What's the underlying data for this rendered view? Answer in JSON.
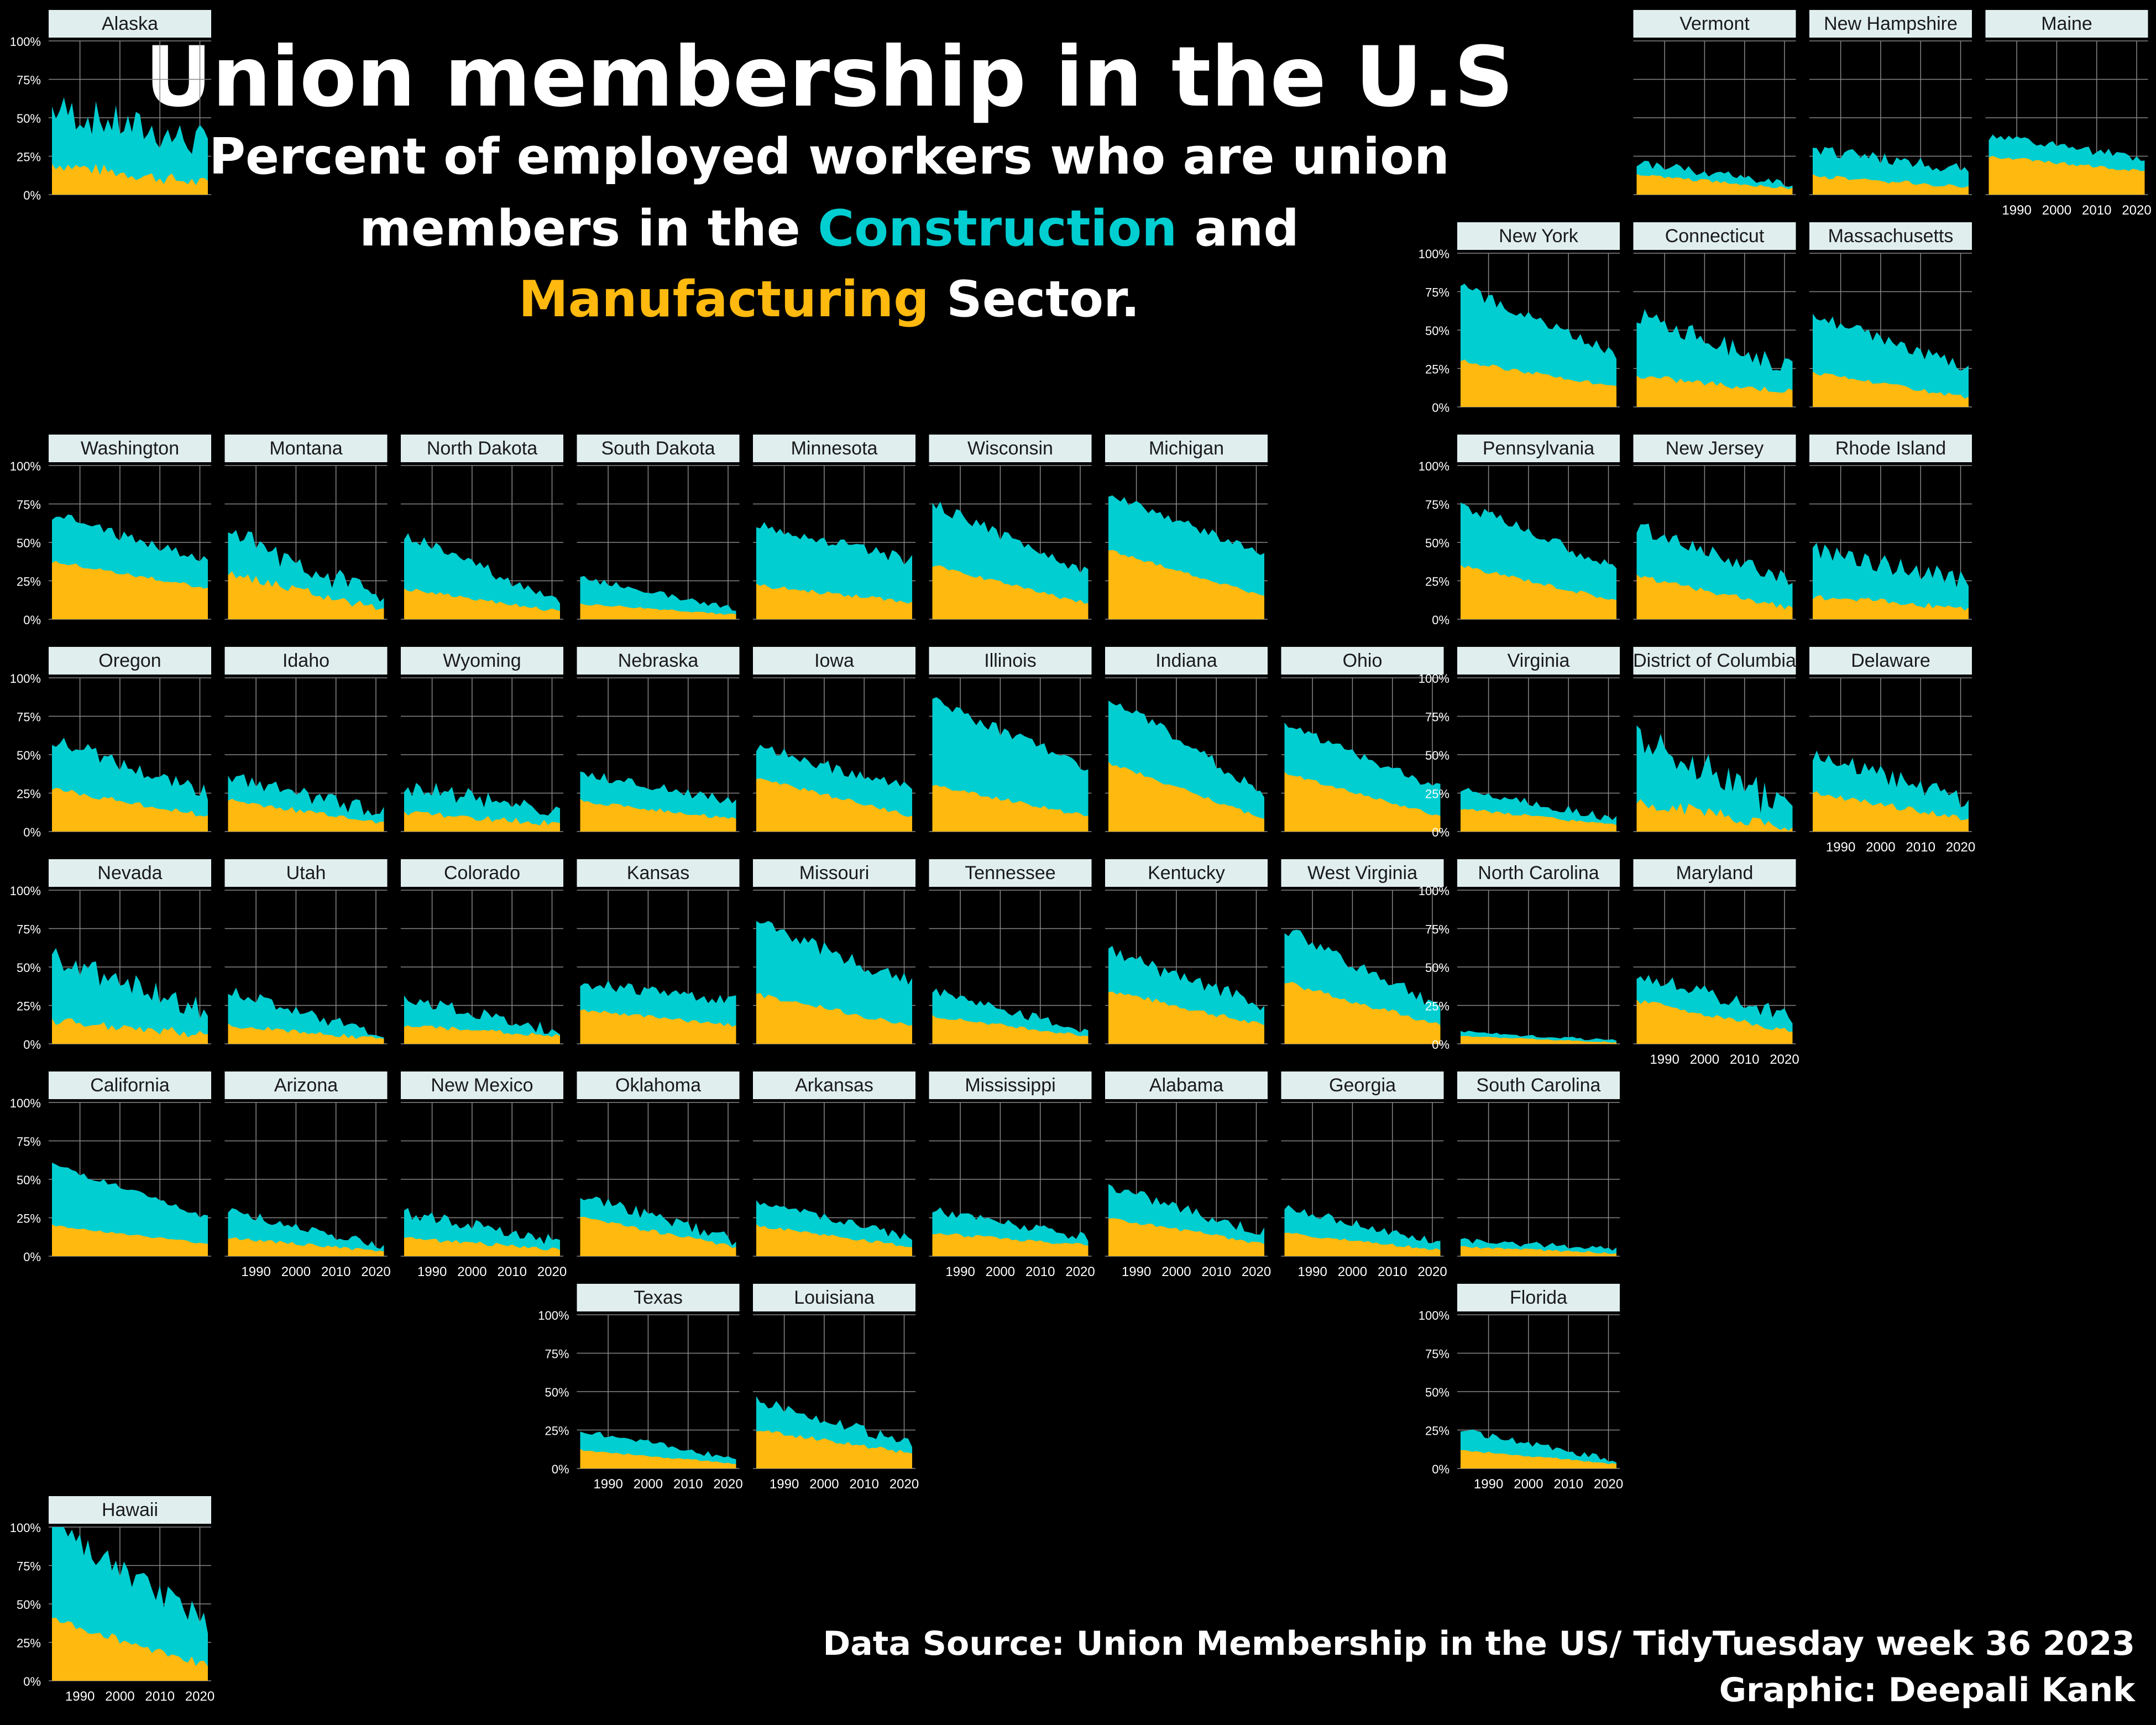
{
  "title": "Union membership in the U.S",
  "subtitle": {
    "line1": "Percent of employed workers who are union",
    "line2_pre": "members in the ",
    "line2_hl": "Construction",
    "line2_post": " and",
    "line3_hl": "Manufacturing",
    "line3_post": " Sector."
  },
  "credits": {
    "source": "Data Source:  Union Membership in the US/ TidyTuesday week 36 2023",
    "graphic": "Graphic: Deepali  Kank"
  },
  "colors": {
    "background": "#000000",
    "construction": "#00CED1",
    "manufacturing": "#FFB90F",
    "strip": "#E0EEEE",
    "grid": "#888888"
  },
  "chart_data": {
    "type": "area",
    "layout": "geofacet small multiples (US state grid)",
    "stacked": true,
    "series_names": [
      "Construction",
      "Manufacturing"
    ],
    "x_range": [
      1983,
      2022
    ],
    "y_range": [
      0,
      1
    ],
    "y_ticks": [
      0,
      0.25,
      0.5,
      0.75,
      1.0
    ],
    "y_tick_labels": [
      "0%",
      "25%",
      "50%",
      "75%",
      "100%"
    ],
    "x_ticks": [
      1990,
      2000,
      2010,
      2020
    ],
    "x_tick_labels": [
      "1990",
      "2000",
      "2010",
      "2020"
    ],
    "grid": true,
    "states": [
      {
        "name": "Alaska",
        "row": 0,
        "col": 0,
        "total_start": 0.56,
        "total_end": 0.33,
        "mfg_start": 0.2,
        "mfg_end": 0.07,
        "vol": 0.12,
        "yaxis": true,
        "xaxis": false
      },
      {
        "name": "Vermont",
        "row": 0,
        "col": 9,
        "total_start": 0.21,
        "total_end": 0.06,
        "mfg_start": 0.13,
        "mfg_end": 0.04,
        "vol": 0.03,
        "yaxis": false,
        "xaxis": false
      },
      {
        "name": "New Hampshire",
        "row": 0,
        "col": 10,
        "total_start": 0.3,
        "total_end": 0.16,
        "mfg_start": 0.12,
        "mfg_end": 0.05,
        "vol": 0.04,
        "yaxis": false,
        "xaxis": false
      },
      {
        "name": "Maine",
        "row": 0,
        "col": 11,
        "total_start": 0.38,
        "total_end": 0.24,
        "mfg_start": 0.25,
        "mfg_end": 0.15,
        "vol": 0.03,
        "yaxis": false,
        "xaxis": true
      },
      {
        "name": "New York",
        "row": 1,
        "col": 8,
        "total_start": 0.78,
        "total_end": 0.35,
        "mfg_start": 0.3,
        "mfg_end": 0.13,
        "vol": 0.04,
        "yaxis": true,
        "xaxis": false
      },
      {
        "name": "Connecticut",
        "row": 1,
        "col": 9,
        "total_start": 0.6,
        "total_end": 0.25,
        "mfg_start": 0.2,
        "mfg_end": 0.1,
        "vol": 0.06,
        "yaxis": false,
        "xaxis": false
      },
      {
        "name": "Massachusetts",
        "row": 1,
        "col": 10,
        "total_start": 0.6,
        "total_end": 0.25,
        "mfg_start": 0.22,
        "mfg_end": 0.06,
        "vol": 0.04,
        "yaxis": false,
        "xaxis": false
      },
      {
        "name": "Washington",
        "row": 2,
        "col": 0,
        "total_start": 0.68,
        "total_end": 0.38,
        "mfg_start": 0.38,
        "mfg_end": 0.2,
        "vol": 0.04,
        "yaxis": true,
        "xaxis": false
      },
      {
        "name": "Montana",
        "row": 2,
        "col": 1,
        "total_start": 0.55,
        "total_end": 0.15,
        "mfg_start": 0.3,
        "mfg_end": 0.06,
        "vol": 0.08,
        "yaxis": false,
        "xaxis": false
      },
      {
        "name": "North Dakota",
        "row": 2,
        "col": 2,
        "total_start": 0.55,
        "total_end": 0.12,
        "mfg_start": 0.2,
        "mfg_end": 0.05,
        "vol": 0.04,
        "yaxis": false,
        "xaxis": false
      },
      {
        "name": "South Dakota",
        "row": 2,
        "col": 3,
        "total_start": 0.27,
        "total_end": 0.07,
        "mfg_start": 0.1,
        "mfg_end": 0.03,
        "vol": 0.02,
        "yaxis": false,
        "xaxis": false
      },
      {
        "name": "Minnesota",
        "row": 2,
        "col": 4,
        "total_start": 0.63,
        "total_end": 0.38,
        "mfg_start": 0.22,
        "mfg_end": 0.11,
        "vol": 0.04,
        "yaxis": false,
        "xaxis": false
      },
      {
        "name": "Wisconsin",
        "row": 2,
        "col": 5,
        "total_start": 0.75,
        "total_end": 0.3,
        "mfg_start": 0.35,
        "mfg_end": 0.1,
        "vol": 0.04,
        "yaxis": false,
        "xaxis": false
      },
      {
        "name": "Michigan",
        "row": 2,
        "col": 6,
        "total_start": 0.82,
        "total_end": 0.42,
        "mfg_start": 0.45,
        "mfg_end": 0.15,
        "vol": 0.03,
        "yaxis": false,
        "xaxis": false
      },
      {
        "name": "Pennsylvania",
        "row": 2,
        "col": 8,
        "total_start": 0.75,
        "total_end": 0.33,
        "mfg_start": 0.35,
        "mfg_end": 0.12,
        "vol": 0.04,
        "yaxis": true,
        "xaxis": false
      },
      {
        "name": "New Jersey",
        "row": 2,
        "col": 9,
        "total_start": 0.6,
        "total_end": 0.25,
        "mfg_start": 0.28,
        "mfg_end": 0.07,
        "vol": 0.05,
        "yaxis": false,
        "xaxis": false
      },
      {
        "name": "Rhode Island",
        "row": 2,
        "col": 10,
        "total_start": 0.45,
        "total_end": 0.25,
        "mfg_start": 0.15,
        "mfg_end": 0.07,
        "vol": 0.06,
        "yaxis": false,
        "xaxis": false
      },
      {
        "name": "Oregon",
        "row": 3,
        "col": 0,
        "total_start": 0.6,
        "total_end": 0.25,
        "mfg_start": 0.28,
        "mfg_end": 0.1,
        "vol": 0.05,
        "yaxis": true,
        "xaxis": false
      },
      {
        "name": "Idaho",
        "row": 3,
        "col": 1,
        "total_start": 0.35,
        "total_end": 0.12,
        "mfg_start": 0.2,
        "mfg_end": 0.06,
        "vol": 0.05,
        "yaxis": false,
        "xaxis": false
      },
      {
        "name": "Wyoming",
        "row": 3,
        "col": 2,
        "total_start": 0.3,
        "total_end": 0.12,
        "mfg_start": 0.12,
        "mfg_end": 0.05,
        "vol": 0.06,
        "yaxis": false,
        "xaxis": false
      },
      {
        "name": "Nebraska",
        "row": 3,
        "col": 3,
        "total_start": 0.38,
        "total_end": 0.2,
        "mfg_start": 0.2,
        "mfg_end": 0.08,
        "vol": 0.04,
        "yaxis": false,
        "xaxis": false
      },
      {
        "name": "Iowa",
        "row": 3,
        "col": 4,
        "total_start": 0.55,
        "total_end": 0.28,
        "mfg_start": 0.35,
        "mfg_end": 0.1,
        "vol": 0.04,
        "yaxis": false,
        "xaxis": false
      },
      {
        "name": "Illinois",
        "row": 3,
        "col": 5,
        "total_start": 0.85,
        "total_end": 0.42,
        "mfg_start": 0.3,
        "mfg_end": 0.1,
        "vol": 0.04,
        "yaxis": false,
        "xaxis": false
      },
      {
        "name": "Indiana",
        "row": 3,
        "col": 6,
        "total_start": 0.88,
        "total_end": 0.25,
        "mfg_start": 0.45,
        "mfg_end": 0.08,
        "vol": 0.04,
        "yaxis": false,
        "xaxis": false
      },
      {
        "name": "Ohio",
        "row": 3,
        "col": 7,
        "total_start": 0.7,
        "total_end": 0.28,
        "mfg_start": 0.38,
        "mfg_end": 0.1,
        "vol": 0.03,
        "yaxis": false,
        "xaxis": false
      },
      {
        "name": "Virginia",
        "row": 3,
        "col": 8,
        "total_start": 0.28,
        "total_end": 0.08,
        "mfg_start": 0.15,
        "mfg_end": 0.04,
        "vol": 0.03,
        "yaxis": true,
        "xaxis": false
      },
      {
        "name": "District of Columbia",
        "row": 3,
        "col": 9,
        "total_start": 0.65,
        "total_end": 0.12,
        "mfg_start": 0.2,
        "mfg_end": 0.02,
        "vol": 0.12,
        "yaxis": false,
        "xaxis": false
      },
      {
        "name": "Delaware",
        "row": 3,
        "col": 10,
        "total_start": 0.5,
        "total_end": 0.2,
        "mfg_start": 0.25,
        "mfg_end": 0.08,
        "vol": 0.06,
        "yaxis": false,
        "xaxis": true
      },
      {
        "name": "Nevada",
        "row": 4,
        "col": 0,
        "total_start": 0.55,
        "total_end": 0.2,
        "mfg_start": 0.15,
        "mfg_end": 0.06,
        "vol": 0.09,
        "yaxis": true,
        "xaxis": false
      },
      {
        "name": "Utah",
        "row": 4,
        "col": 1,
        "total_start": 0.35,
        "total_end": 0.05,
        "mfg_start": 0.12,
        "mfg_end": 0.03,
        "vol": 0.04,
        "yaxis": false,
        "xaxis": false
      },
      {
        "name": "Colorado",
        "row": 4,
        "col": 2,
        "total_start": 0.3,
        "total_end": 0.08,
        "mfg_start": 0.12,
        "mfg_end": 0.05,
        "vol": 0.04,
        "yaxis": false,
        "xaxis": false
      },
      {
        "name": "Kansas",
        "row": 4,
        "col": 3,
        "total_start": 0.4,
        "total_end": 0.28,
        "mfg_start": 0.22,
        "mfg_end": 0.12,
        "vol": 0.04,
        "yaxis": false,
        "xaxis": false
      },
      {
        "name": "Missouri",
        "row": 4,
        "col": 4,
        "total_start": 0.78,
        "total_end": 0.4,
        "mfg_start": 0.32,
        "mfg_end": 0.12,
        "vol": 0.05,
        "yaxis": false,
        "xaxis": false
      },
      {
        "name": "Tennessee",
        "row": 4,
        "col": 5,
        "total_start": 0.35,
        "total_end": 0.08,
        "mfg_start": 0.18,
        "mfg_end": 0.05,
        "vol": 0.03,
        "yaxis": false,
        "xaxis": false
      },
      {
        "name": "Kentucky",
        "row": 4,
        "col": 6,
        "total_start": 0.6,
        "total_end": 0.25,
        "mfg_start": 0.35,
        "mfg_end": 0.12,
        "vol": 0.05,
        "yaxis": false,
        "xaxis": false
      },
      {
        "name": "West Virginia",
        "row": 4,
        "col": 7,
        "total_start": 0.75,
        "total_end": 0.25,
        "mfg_start": 0.4,
        "mfg_end": 0.12,
        "vol": 0.05,
        "yaxis": false,
        "xaxis": false
      },
      {
        "name": "North Carolina",
        "row": 4,
        "col": 8,
        "total_start": 0.08,
        "total_end": 0.02,
        "mfg_start": 0.05,
        "mfg_end": 0.01,
        "vol": 0.01,
        "yaxis": true,
        "xaxis": false
      },
      {
        "name": "Maryland",
        "row": 4,
        "col": 9,
        "total_start": 0.45,
        "total_end": 0.18,
        "mfg_start": 0.28,
        "mfg_end": 0.08,
        "vol": 0.05,
        "yaxis": false,
        "xaxis": true
      },
      {
        "name": "California",
        "row": 5,
        "col": 0,
        "total_start": 0.6,
        "total_end": 0.25,
        "mfg_start": 0.2,
        "mfg_end": 0.08,
        "vol": 0.02,
        "yaxis": true,
        "xaxis": false
      },
      {
        "name": "Arizona",
        "row": 5,
        "col": 1,
        "total_start": 0.3,
        "total_end": 0.06,
        "mfg_start": 0.12,
        "mfg_end": 0.03,
        "vol": 0.03,
        "yaxis": false,
        "xaxis": true
      },
      {
        "name": "New Mexico",
        "row": 5,
        "col": 2,
        "total_start": 0.28,
        "total_end": 0.1,
        "mfg_start": 0.12,
        "mfg_end": 0.04,
        "vol": 0.04,
        "yaxis": false,
        "xaxis": true
      },
      {
        "name": "Oklahoma",
        "row": 5,
        "col": 3,
        "total_start": 0.4,
        "total_end": 0.1,
        "mfg_start": 0.25,
        "mfg_end": 0.06,
        "vol": 0.04,
        "yaxis": false,
        "xaxis": false
      },
      {
        "name": "Arkansas",
        "row": 5,
        "col": 4,
        "total_start": 0.35,
        "total_end": 0.12,
        "mfg_start": 0.2,
        "mfg_end": 0.06,
        "vol": 0.03,
        "yaxis": false,
        "xaxis": false
      },
      {
        "name": "Mississippi",
        "row": 5,
        "col": 5,
        "total_start": 0.3,
        "total_end": 0.12,
        "mfg_start": 0.15,
        "mfg_end": 0.07,
        "vol": 0.03,
        "yaxis": false,
        "xaxis": true
      },
      {
        "name": "Alabama",
        "row": 5,
        "col": 6,
        "total_start": 0.45,
        "total_end": 0.15,
        "mfg_start": 0.25,
        "mfg_end": 0.08,
        "vol": 0.04,
        "yaxis": false,
        "xaxis": true
      },
      {
        "name": "Georgia",
        "row": 5,
        "col": 7,
        "total_start": 0.32,
        "total_end": 0.08,
        "mfg_start": 0.15,
        "mfg_end": 0.04,
        "vol": 0.03,
        "yaxis": false,
        "xaxis": true
      },
      {
        "name": "South Carolina",
        "row": 5,
        "col": 8,
        "total_start": 0.1,
        "total_end": 0.05,
        "mfg_start": 0.06,
        "mfg_end": 0.02,
        "vol": 0.02,
        "yaxis": false,
        "xaxis": false
      },
      {
        "name": "Texas",
        "row": 6,
        "col": 3,
        "total_start": 0.25,
        "total_end": 0.06,
        "mfg_start": 0.12,
        "mfg_end": 0.03,
        "vol": 0.02,
        "yaxis": true,
        "xaxis": true
      },
      {
        "name": "Louisiana",
        "row": 6,
        "col": 4,
        "total_start": 0.45,
        "total_end": 0.15,
        "mfg_start": 0.25,
        "mfg_end": 0.1,
        "vol": 0.04,
        "yaxis": false,
        "xaxis": true
      },
      {
        "name": "Florida",
        "row": 6,
        "col": 8,
        "total_start": 0.25,
        "total_end": 0.05,
        "mfg_start": 0.12,
        "mfg_end": 0.03,
        "vol": 0.02,
        "yaxis": true,
        "xaxis": true
      },
      {
        "name": "Hawaii",
        "row": 7,
        "col": 0,
        "total_start": 1.0,
        "total_end": 0.38,
        "mfg_start": 0.4,
        "mfg_end": 0.1,
        "vol": 0.08,
        "yaxis": true,
        "xaxis": true
      }
    ]
  }
}
